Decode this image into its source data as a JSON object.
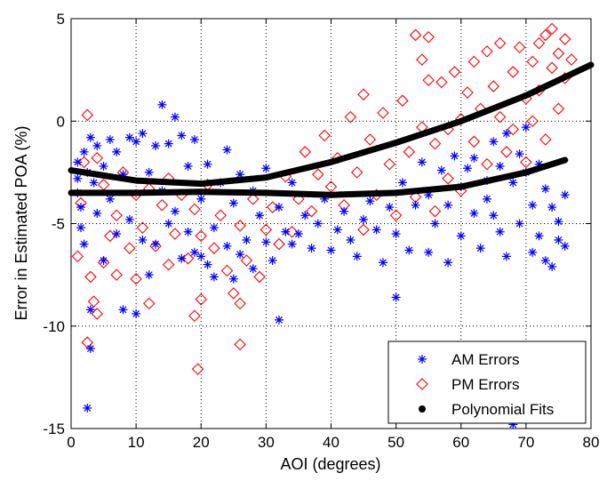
{
  "chart_data": {
    "type": "scatter",
    "xlabel": "AOI (degrees)",
    "ylabel": "Error in Estimated POA (%)",
    "xlim": [
      0,
      80
    ],
    "ylim": [
      -15,
      5
    ],
    "xticks": [
      0,
      10,
      20,
      30,
      40,
      50,
      60,
      70,
      80
    ],
    "yticks": [
      -15,
      -10,
      -5,
      0,
      5
    ],
    "xtick_labels": [
      "0",
      "10",
      "20",
      "30",
      "40",
      "50",
      "60",
      "70",
      "80"
    ],
    "ytick_labels": [
      "-15",
      "-10",
      "-5",
      "0",
      "5"
    ],
    "grid": true,
    "legend_position": "bottom-right",
    "legend": [
      "AM Errors",
      "PM Errors",
      "Polynomial Fits"
    ],
    "colors": {
      "am": "#0000ff",
      "pm": "#ff0000",
      "fit": "#000000"
    },
    "series": [
      {
        "name": "AM Errors",
        "marker": "asterisk",
        "points": [
          [
            1,
            -2.0
          ],
          [
            1,
            -2.8
          ],
          [
            1,
            -3.5
          ],
          [
            1.5,
            -4.2
          ],
          [
            1.5,
            -5.2
          ],
          [
            2,
            -6.0
          ],
          [
            2,
            -1.5
          ],
          [
            2.5,
            -2.5
          ],
          [
            3,
            -0.8
          ],
          [
            3,
            -9.2
          ],
          [
            3,
            -11.1
          ],
          [
            2.5,
            -14.0
          ],
          [
            3.5,
            -3.0
          ],
          [
            4,
            -1.2
          ],
          [
            4,
            -4.5
          ],
          [
            5,
            -6.8
          ],
          [
            5,
            -2.2
          ],
          [
            6,
            -0.9
          ],
          [
            6,
            -3.8
          ],
          [
            7,
            -5.5
          ],
          [
            7,
            -1.5
          ],
          [
            8,
            -9.2
          ],
          [
            8,
            -2.6
          ],
          [
            9,
            -0.8
          ],
          [
            9,
            -4.8
          ],
          [
            10,
            -9.4
          ],
          [
            10,
            -1.0
          ],
          [
            11,
            -5.8
          ],
          [
            11,
            -0.6
          ],
          [
            12,
            -2.5
          ],
          [
            12,
            -7.5
          ],
          [
            13,
            -1.2
          ],
          [
            13,
            -6.0
          ],
          [
            14,
            0.8
          ],
          [
            14,
            -3.4
          ],
          [
            15,
            -1.1
          ],
          [
            15,
            -5.0
          ],
          [
            16,
            0.2
          ],
          [
            16,
            -4.4
          ],
          [
            17,
            -0.7
          ],
          [
            17,
            -6.7
          ],
          [
            18,
            -2.2
          ],
          [
            18,
            -5.4
          ],
          [
            19,
            -0.9
          ],
          [
            19,
            -6.4
          ],
          [
            20,
            -3.8
          ],
          [
            20,
            -6.6
          ],
          [
            21,
            -7.0
          ],
          [
            21,
            -2.1
          ],
          [
            22,
            -5.2
          ],
          [
            22,
            -7.6
          ],
          [
            23,
            -3.0
          ],
          [
            24,
            -6.1
          ],
          [
            24,
            -1.4
          ],
          [
            25,
            -7.7
          ],
          [
            25,
            -4.0
          ],
          [
            26,
            -2.6
          ],
          [
            26,
            -6.5
          ],
          [
            27,
            -5.8
          ],
          [
            28,
            -3.4
          ],
          [
            28,
            -7.2
          ],
          [
            29,
            -4.6
          ],
          [
            30,
            -5.9
          ],
          [
            30,
            -2.3
          ],
          [
            31,
            -6.8
          ],
          [
            32,
            -9.7
          ],
          [
            32,
            -4.2
          ],
          [
            33,
            -5.4
          ],
          [
            34,
            -3.0
          ],
          [
            34,
            -6.0
          ],
          [
            35,
            -5.5
          ],
          [
            36,
            -4.6
          ],
          [
            37,
            -6.2
          ],
          [
            38,
            -5.0
          ],
          [
            39,
            -3.8
          ],
          [
            40,
            -6.3
          ],
          [
            41,
            -5.3
          ],
          [
            42,
            -4.4
          ],
          [
            43,
            -5.8
          ],
          [
            44,
            -6.6
          ],
          [
            45,
            -4.8
          ],
          [
            46,
            -3.9
          ],
          [
            47,
            -5.3
          ],
          [
            48,
            -6.9
          ],
          [
            49,
            -4.2
          ],
          [
            50,
            -8.6
          ],
          [
            50,
            -5.5
          ],
          [
            51,
            -3.0
          ],
          [
            52,
            -6.3
          ],
          [
            53,
            -4.1
          ],
          [
            54,
            -2.0
          ],
          [
            55,
            -6.4
          ],
          [
            55,
            -3.6
          ],
          [
            56,
            -5.0
          ],
          [
            57,
            -2.4
          ],
          [
            58,
            -6.9
          ],
          [
            58,
            -4.1
          ],
          [
            59,
            -1.7
          ],
          [
            60,
            -5.6
          ],
          [
            60,
            -3.2
          ],
          [
            61,
            -2.3
          ],
          [
            62,
            -4.5
          ],
          [
            62,
            -1.8
          ],
          [
            63,
            -6.2
          ],
          [
            64,
            -3.8
          ],
          [
            64,
            -2.9
          ],
          [
            65,
            -1.0
          ],
          [
            65,
            -4.6
          ],
          [
            66,
            -2.2
          ],
          [
            66,
            -5.4
          ],
          [
            67,
            -0.6
          ],
          [
            67,
            -6.6
          ],
          [
            68,
            -14.8
          ],
          [
            68,
            -3.0
          ],
          [
            69,
            -1.6
          ],
          [
            69,
            -5.0
          ],
          [
            70,
            -0.3
          ],
          [
            70,
            -2.5
          ],
          [
            71,
            -4.1
          ],
          [
            71,
            -6.4
          ],
          [
            72,
            -2.1
          ],
          [
            72,
            -5.6
          ],
          [
            73,
            -3.3
          ],
          [
            73,
            -6.8
          ],
          [
            74,
            -4.2
          ],
          [
            74,
            -7.1
          ],
          [
            75,
            -4.9
          ],
          [
            75,
            -5.8
          ],
          [
            76,
            -6.1
          ],
          [
            76,
            -3.6
          ]
        ]
      },
      {
        "name": "PM Errors",
        "marker": "diamond",
        "points": [
          [
            1,
            -6.6
          ],
          [
            1.5,
            -4.0
          ],
          [
            2,
            -2.0
          ],
          [
            2.5,
            0.3
          ],
          [
            2.5,
            -10.8
          ],
          [
            3,
            -7.6
          ],
          [
            3.5,
            -8.8
          ],
          [
            4,
            -9.4
          ],
          [
            4,
            -1.8
          ],
          [
            5,
            -6.9
          ],
          [
            5,
            -3.1
          ],
          [
            6,
            -5.6
          ],
          [
            7,
            -4.6
          ],
          [
            7,
            -7.5
          ],
          [
            8,
            -2.5
          ],
          [
            9,
            -6.2
          ],
          [
            10,
            -3.6
          ],
          [
            10,
            -7.7
          ],
          [
            11,
            -5.2
          ],
          [
            12,
            -8.9
          ],
          [
            12,
            -3.3
          ],
          [
            13,
            -6.1
          ],
          [
            14,
            -4.1
          ],
          [
            15,
            -7.0
          ],
          [
            15,
            -2.8
          ],
          [
            16,
            -5.5
          ],
          [
            17,
            -3.6
          ],
          [
            18,
            -6.7
          ],
          [
            19,
            -9.5
          ],
          [
            19,
            -4.3
          ],
          [
            19.5,
            -12.1
          ],
          [
            20,
            -5.6
          ],
          [
            20,
            -8.7
          ],
          [
            21,
            -3.1
          ],
          [
            22,
            -6.2
          ],
          [
            23,
            -4.6
          ],
          [
            24,
            -7.3
          ],
          [
            25,
            -8.4
          ],
          [
            26,
            -10.9
          ],
          [
            26,
            -8.9
          ],
          [
            26,
            -5.1
          ],
          [
            27,
            -6.8
          ],
          [
            28,
            -3.8
          ],
          [
            29,
            -7.6
          ],
          [
            30,
            -5.3
          ],
          [
            31,
            -4.2
          ],
          [
            32,
            -6.0
          ],
          [
            33,
            -2.7
          ],
          [
            34,
            -5.4
          ],
          [
            35,
            -3.8
          ],
          [
            36,
            -1.5
          ],
          [
            37,
            -4.4
          ],
          [
            38,
            -2.6
          ],
          [
            39,
            -0.7
          ],
          [
            40,
            -3.2
          ],
          [
            41,
            -1.8
          ],
          [
            42,
            -4.1
          ],
          [
            43,
            0.2
          ],
          [
            44,
            -2.5
          ],
          [
            45,
            1.3
          ],
          [
            45,
            -5.3
          ],
          [
            46,
            -0.9
          ],
          [
            47,
            -3.6
          ],
          [
            48,
            0.4
          ],
          [
            49,
            -2.1
          ],
          [
            50,
            -4.6
          ],
          [
            51,
            1.0
          ],
          [
            52,
            -1.5
          ],
          [
            53,
            4.2
          ],
          [
            53,
            -3.7
          ],
          [
            54,
            3.0
          ],
          [
            54,
            -0.3
          ],
          [
            55,
            4.1
          ],
          [
            55,
            2.0
          ],
          [
            56,
            -1.1
          ],
          [
            56,
            -4.4
          ],
          [
            57,
            1.9
          ],
          [
            58,
            -0.4
          ],
          [
            58,
            -2.8
          ],
          [
            59,
            2.4
          ],
          [
            60,
            0.1
          ],
          [
            60,
            -3.4
          ],
          [
            61,
            1.4
          ],
          [
            62,
            2.9
          ],
          [
            62,
            -1.0
          ],
          [
            63,
            0.6
          ],
          [
            64,
            3.4
          ],
          [
            64,
            -2.1
          ],
          [
            65,
            1.7
          ],
          [
            66,
            0.2
          ],
          [
            66,
            3.8
          ],
          [
            67,
            -1.5
          ],
          [
            68,
            2.4
          ],
          [
            68,
            -0.4
          ],
          [
            69,
            3.6
          ],
          [
            70,
            1.1
          ],
          [
            70,
            -2.0
          ],
          [
            71,
            2.9
          ],
          [
            71,
            0.0
          ],
          [
            72,
            3.8
          ],
          [
            72,
            1.5
          ],
          [
            73,
            4.2
          ],
          [
            73,
            -0.9
          ],
          [
            74,
            4.5
          ],
          [
            74,
            2.6
          ],
          [
            75,
            3.3
          ],
          [
            75,
            0.6
          ],
          [
            76,
            4.0
          ],
          [
            76,
            2.1
          ],
          [
            77,
            3.0
          ]
        ]
      }
    ],
    "fits": [
      {
        "name": "Polynomial Fits",
        "x": [
          0,
          10,
          20,
          30,
          40,
          50,
          60,
          70,
          80
        ],
        "y": [
          -2.4,
          -2.9,
          -3.05,
          -2.75,
          -2.0,
          -1.05,
          0.0,
          1.25,
          2.75
        ]
      },
      {
        "name": "Polynomial Fits",
        "x": [
          0,
          10,
          20,
          30,
          40,
          50,
          60,
          70,
          76
        ],
        "y": [
          -3.5,
          -3.5,
          -3.45,
          -3.5,
          -3.6,
          -3.5,
          -3.2,
          -2.5,
          -1.9
        ]
      }
    ]
  }
}
